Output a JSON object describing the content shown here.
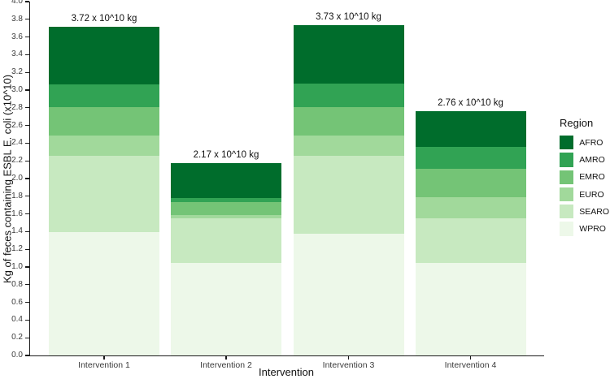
{
  "chart_data": {
    "type": "bar",
    "stacked": true,
    "title": "",
    "xlabel": "Intervention",
    "ylabel": "Kg of feces containing ESBL E. coli (x10^10)",
    "ylim": [
      0,
      4.0
    ],
    "ytick_step": 0.2,
    "grid": false,
    "categories": [
      "Intervention 1",
      "Intervention 2",
      "Intervention 3",
      "Intervention 4"
    ],
    "series": [
      {
        "name": "AFRO",
        "color": "#006d2c",
        "values": [
          0.66,
          0.39,
          0.66,
          0.4
        ]
      },
      {
        "name": "AMRO",
        "color": "#31a354",
        "values": [
          0.25,
          0.05,
          0.26,
          0.25
        ]
      },
      {
        "name": "EMRO",
        "color": "#74c476",
        "values": [
          0.32,
          0.14,
          0.32,
          0.32
        ]
      },
      {
        "name": "EURO",
        "color": "#a1d99b",
        "values": [
          0.23,
          0.04,
          0.23,
          0.24
        ]
      },
      {
        "name": "SEARO",
        "color": "#c7e9c0",
        "values": [
          0.87,
          0.5,
          0.88,
          0.5
        ]
      },
      {
        "name": "WPRO",
        "color": "#edf8e9",
        "values": [
          1.39,
          1.05,
          1.38,
          1.05
        ]
      }
    ],
    "totals": [
      3.72,
      2.17,
      3.73,
      2.76
    ],
    "bar_labels": [
      "3.72 x 10^10 kg",
      "2.17 x 10^10 kg",
      "3.73 x 10^10 kg",
      "2.76 x 10^10 kg"
    ],
    "legend": {
      "title": "Region",
      "position": "right",
      "entries": [
        "AFRO",
        "AMRO",
        "EMRO",
        "EURO",
        "SEARO",
        "WPRO"
      ]
    }
  }
}
